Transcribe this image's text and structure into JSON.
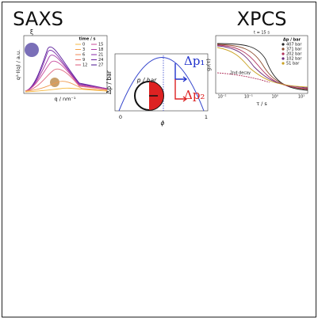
{
  "saxs": {
    "title": "SAXS",
    "y_label": "q²·I(q) / a.u.",
    "x_label": "q / nm⁻¹",
    "xi": "ξ",
    "legend_title": "time / s",
    "legend": [
      "0",
      "3",
      "6",
      "9",
      "12",
      "15",
      "18",
      "21",
      "24",
      "27"
    ]
  },
  "middle": {
    "y_label": "Δp / bar",
    "x_label": "ϕ",
    "x_ticks": [
      "0",
      "1"
    ],
    "dp1": "Δp₁",
    "dp2": "Δp₂",
    "gauge": "p / bar"
  },
  "xpcs": {
    "title": "XPCS",
    "subtitle": "t = 15 s",
    "y_label": "g₂(τ)",
    "x_label": "τ / s",
    "annotation": "2nd decay",
    "legend_title": "Δp / bar",
    "legend": [
      "407 bar",
      "371 bar",
      "202 bar",
      "102 bar",
      "51 bar"
    ],
    "x_ticks": [
      "10⁻²",
      "10⁻¹",
      "10⁰",
      "10¹"
    ]
  }
}
